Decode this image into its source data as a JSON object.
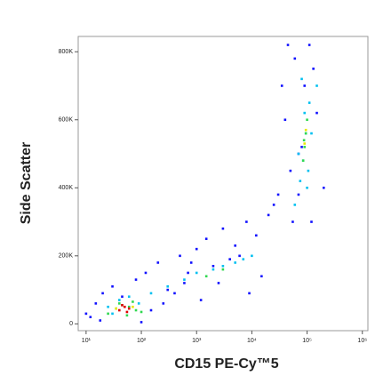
{
  "chart_data": {
    "type": "scatter",
    "x_label": "CD15 PE-Cy™5",
    "y_label": "Side Scatter",
    "xscale": "log",
    "xlim": [
      7.2,
      1260000
    ],
    "ylim": [
      -20000,
      845000
    ],
    "xticks": [
      {
        "value": 10,
        "label": "10¹"
      },
      {
        "value": 100,
        "label": "10²"
      },
      {
        "value": 1000,
        "label": "10³"
      },
      {
        "value": 10000,
        "label": "10⁴"
      },
      {
        "value": 100000,
        "label": "10⁵"
      },
      {
        "value": 1000000,
        "label": "10⁶"
      }
    ],
    "yticks": [
      0,
      {
        "value": 200000,
        "label": "200K"
      },
      {
        "value": 400000,
        "label": "400K"
      },
      {
        "value": 600000,
        "label": "600K"
      },
      {
        "value": 800000,
        "label": "800K"
      }
    ],
    "series": [
      {
        "color": "#1010ff",
        "x": [
          12,
          15,
          20,
          30,
          45,
          80,
          120,
          200,
          300,
          500,
          700,
          1000,
          1500,
          2000,
          3000,
          5000,
          8000,
          12000,
          20000,
          30000,
          50000,
          70000,
          90000,
          150000,
          200000,
          60000,
          40000,
          25000,
          100,
          150,
          18,
          10,
          250,
          400,
          600,
          2500,
          4000,
          15000,
          80000,
          120000,
          35000,
          45000,
          110000,
          130000,
          70000,
          55000,
          9000,
          6000,
          800,
          1200
        ],
        "values": [
          20000,
          60000,
          90000,
          110000,
          80000,
          130000,
          150000,
          180000,
          100000,
          200000,
          150000,
          220000,
          250000,
          170000,
          280000,
          230000,
          300000,
          260000,
          320000,
          380000,
          450000,
          500000,
          700000,
          620000,
          400000,
          780000,
          600000,
          350000,
          5000,
          40000,
          10000,
          30000,
          60000,
          90000,
          120000,
          120000,
          190000,
          140000,
          520000,
          300000,
          700000,
          820000,
          820000,
          750000,
          380000,
          300000,
          90000,
          200000,
          180000,
          70000
        ]
      },
      {
        "color": "#00c0f0",
        "x": [
          30,
          40,
          60,
          90,
          150,
          300,
          600,
          1000,
          2000,
          3000,
          5000,
          7000,
          10000,
          60000,
          75000,
          85000,
          95000,
          110000,
          80000,
          100000,
          90000,
          70000,
          120000,
          105000,
          25,
          150000
        ],
        "values": [
          30000,
          70000,
          80000,
          60000,
          90000,
          110000,
          130000,
          150000,
          160000,
          170000,
          180000,
          190000,
          200000,
          350000,
          420000,
          480000,
          560000,
          650000,
          720000,
          400000,
          620000,
          500000,
          560000,
          450000,
          50000,
          700000
        ]
      },
      {
        "color": "#30d850",
        "x": [
          25,
          35,
          45,
          60,
          80,
          100,
          40,
          55,
          70,
          85000,
          90000,
          95000,
          100000,
          88000,
          1500,
          3000
        ],
        "values": [
          30000,
          45000,
          55000,
          50000,
          40000,
          35000,
          60000,
          25000,
          65000,
          480000,
          520000,
          560000,
          600000,
          540000,
          140000,
          160000
        ]
      },
      {
        "color": "#e8e800",
        "x": [
          35,
          70,
          90000,
          95000
        ],
        "values": [
          45000,
          50000,
          530000,
          570000
        ]
      },
      {
        "color": "#e00000",
        "x": [
          40,
          50,
          60,
          45,
          55
        ],
        "values": [
          40000,
          50000,
          45000,
          55000,
          35000
        ]
      }
    ]
  }
}
